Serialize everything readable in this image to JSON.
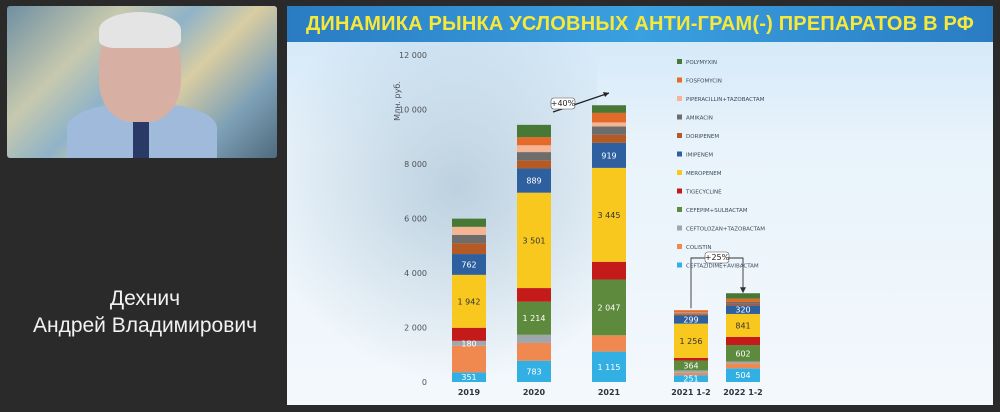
{
  "speaker": {
    "line1": "Дехнич",
    "line2": "Андрей Владимирович"
  },
  "slide": {
    "title": "ДИНАМИКА РЫНКА УСЛОВНЫХ АНТИ-ГРАМ(-) ПРЕПАРАТОВ В РФ"
  },
  "chart_data": {
    "type": "bar",
    "stacked": true,
    "ylabel": "Млн. руб.",
    "ylim": [
      0,
      12000
    ],
    "yticks": [
      "0",
      "2 000",
      "4 000",
      "6 000",
      "8 000",
      "10 000",
      "12 000"
    ],
    "categories": [
      "2019",
      "2020",
      "2021",
      "2021 1-2",
      "2022 1-2"
    ],
    "series": [
      {
        "name": "CEFTAZIDIME+AVIBACTAM",
        "color": "#33b0e3",
        "values": [
          351,
          783,
          1115,
          251,
          504
        ]
      },
      {
        "name": "COLISTIN",
        "color": "#f0894f",
        "values": [
          980,
          650,
          600,
          85,
          180
        ]
      },
      {
        "name": "CEFTOLOZAN+TAZOBACTAM",
        "color": "#9fa7ad",
        "values": [
          180,
          300,
          0,
          90,
          70
        ]
      },
      {
        "name": "CEFEPIM+SULBACTAM",
        "color": "#5d8a3c",
        "values": [
          0,
          1214,
          2047,
          364,
          602
        ]
      },
      {
        "name": "TIGECYCLINE",
        "color": "#c41a1a",
        "values": [
          480,
          500,
          650,
          95,
          300
        ]
      },
      {
        "name": "MEROPENEM",
        "color": "#f8c81e",
        "values": [
          1942,
          3501,
          3445,
          1256,
          841
        ]
      },
      {
        "name": "IMIPENEM",
        "color": "#2e5f9e",
        "values": [
          762,
          889,
          919,
          299,
          320
        ]
      },
      {
        "name": "DORIPENEM",
        "color": "#b55a25",
        "values": [
          400,
          300,
          300,
          45,
          60
        ]
      },
      {
        "name": "AMIKACIN",
        "color": "#6d6d6d",
        "values": [
          300,
          300,
          300,
          40,
          60
        ]
      },
      {
        "name": "PIPERACILLIN+TAZOBACTAM",
        "color": "#f5b594",
        "values": [
          300,
          250,
          150,
          20,
          0
        ]
      },
      {
        "name": "FOSFOMYCIN",
        "color": "#e46a2a",
        "values": [
          0,
          300,
          350,
          90,
          120
        ]
      },
      {
        "name": "POLYMYXIN",
        "color": "#477836",
        "values": [
          300,
          450,
          280,
          0,
          200
        ]
      }
    ],
    "data_labels": [
      {
        "bar": 0,
        "series": 0,
        "text": "351"
      },
      {
        "bar": 0,
        "series": 2,
        "text": "180"
      },
      {
        "bar": 0,
        "series": 5,
        "text": "1 942"
      },
      {
        "bar": 0,
        "series": 6,
        "text": "762"
      },
      {
        "bar": 1,
        "series": 0,
        "text": "783"
      },
      {
        "bar": 1,
        "series": 3,
        "text": "1 214"
      },
      {
        "bar": 1,
        "series": 5,
        "text": "3 501"
      },
      {
        "bar": 1,
        "series": 6,
        "text": "889"
      },
      {
        "bar": 2,
        "series": 0,
        "text": "1 115"
      },
      {
        "bar": 2,
        "series": 3,
        "text": "2 047"
      },
      {
        "bar": 2,
        "series": 5,
        "text": "3 445"
      },
      {
        "bar": 2,
        "series": 6,
        "text": "919"
      },
      {
        "bar": 3,
        "series": 0,
        "text": "251"
      },
      {
        "bar": 3,
        "series": 3,
        "text": "364"
      },
      {
        "bar": 3,
        "series": 5,
        "text": "1 256"
      },
      {
        "bar": 3,
        "series": 6,
        "text": "299"
      },
      {
        "bar": 4,
        "series": 0,
        "text": "504"
      },
      {
        "bar": 4,
        "series": 3,
        "text": "602"
      },
      {
        "bar": 4,
        "series": 5,
        "text": "841"
      },
      {
        "bar": 4,
        "series": 6,
        "text": "320"
      }
    ],
    "annotations": [
      {
        "from_bar": 1,
        "to_bar": 2,
        "text": "+40%"
      },
      {
        "from_bar": 3,
        "to_bar": 4,
        "text": "+25%"
      }
    ],
    "legend_position": "right"
  }
}
